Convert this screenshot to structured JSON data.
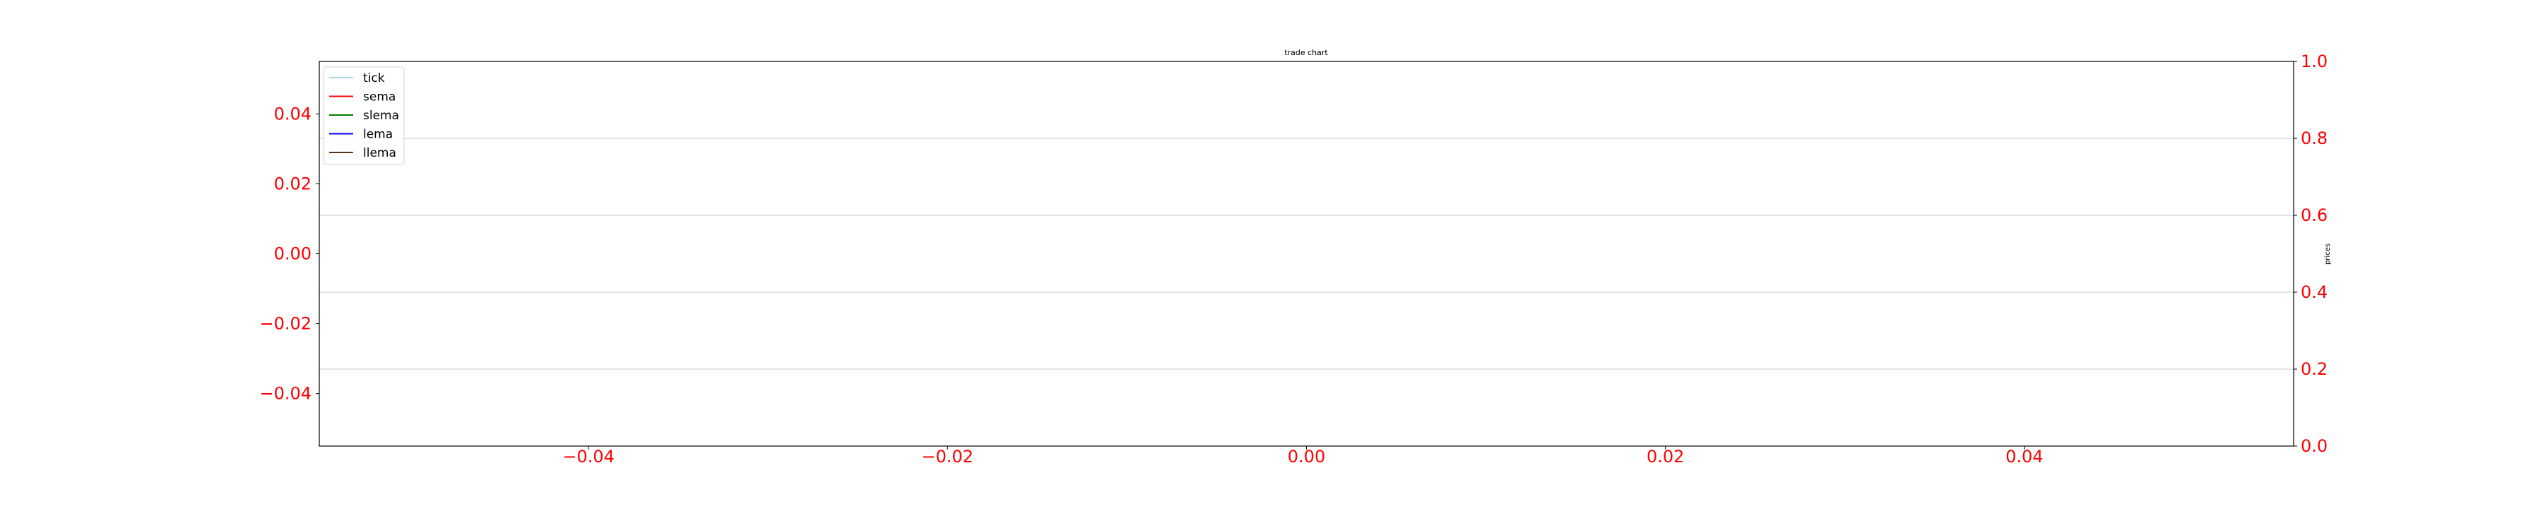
{
  "chart_data": {
    "type": "line",
    "title": "trade chart",
    "xlabel": "",
    "ylabel_left": "",
    "ylabel_right": "prices",
    "grid": "horizontal lines at right-axis ticks",
    "legend_position": "upper-left",
    "x": {
      "range": [
        -0.055,
        0.055
      ],
      "ticks": [
        -0.04,
        -0.02,
        0.0,
        0.02,
        0.04
      ],
      "tick_labels": [
        "−0.04",
        "−0.02",
        "0.00",
        "0.02",
        "0.04"
      ],
      "tick_color": "#ff0000"
    },
    "y_left": {
      "range": [
        -0.055,
        0.055
      ],
      "ticks": [
        0.04,
        0.02,
        0.0,
        -0.02,
        -0.04
      ],
      "tick_labels": [
        "0.04",
        "0.02",
        "0.00",
        "−0.02",
        "−0.04"
      ],
      "tick_color": "#ff0000"
    },
    "y_right": {
      "range": [
        0.0,
        1.0
      ],
      "ticks": [
        0.0,
        0.2,
        0.4,
        0.6,
        0.8,
        1.0
      ],
      "tick_labels": [
        "0.0",
        "0.2",
        "0.4",
        "0.6",
        "0.8",
        "1.0"
      ],
      "tick_color": "#ff0000"
    },
    "series": [
      {
        "name": "tick",
        "color": "#add8e6",
        "values": []
      },
      {
        "name": "sema",
        "color": "#ff0000",
        "values": []
      },
      {
        "name": "slema",
        "color": "#008000",
        "values": []
      },
      {
        "name": "lema",
        "color": "#0000ff",
        "values": []
      },
      {
        "name": "llema",
        "color": "#5c3317",
        "values": []
      }
    ]
  }
}
